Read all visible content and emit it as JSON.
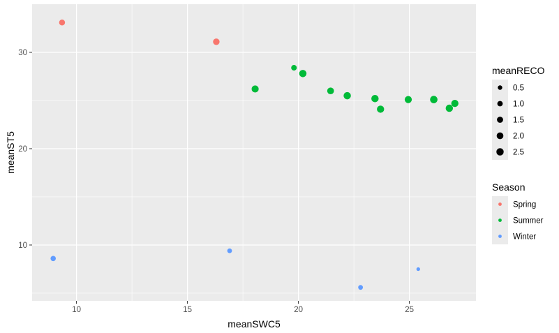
{
  "chart_data": {
    "type": "scatter",
    "xlabel": "meanSWC5",
    "ylabel": "meanST5",
    "xlim": [
      8,
      28
    ],
    "ylim": [
      4.2,
      35
    ],
    "x_ticks": [
      10,
      15,
      20,
      25
    ],
    "y_ticks": [
      10,
      20,
      30
    ],
    "x_tick_labels": [
      "10",
      "15",
      "20",
      "25"
    ],
    "y_tick_labels": [
      "10",
      "20",
      "30"
    ],
    "grid": true,
    "panel_background": "#ebebeb",
    "grid_color": "#ffffff",
    "size_legend": {
      "title": "meanRECO",
      "values": [
        0.5,
        1.0,
        1.5,
        2.0,
        2.5
      ],
      "labels": [
        "0.5",
        "1.0",
        "1.5",
        "2.0",
        "2.5"
      ],
      "color": "#000000",
      "position": "right"
    },
    "color_legend": {
      "title": "Season",
      "position": "right",
      "entries": [
        {
          "label": "Spring",
          "color": "#f8766d"
        },
        {
          "label": "Summer",
          "color": "#00ba38"
        },
        {
          "label": "Winter",
          "color": "#619cff"
        }
      ]
    },
    "series": [
      {
        "name": "Spring",
        "color": "#f8766d",
        "points": [
          {
            "x": 9.35,
            "y": 33.1,
            "size": 1.3
          },
          {
            "x": 16.3,
            "y": 31.1,
            "size": 1.8
          }
        ]
      },
      {
        "name": "Summer",
        "color": "#00ba38",
        "points": [
          {
            "x": 18.05,
            "y": 26.2,
            "size": 2.3
          },
          {
            "x": 19.8,
            "y": 28.4,
            "size": 1.1
          },
          {
            "x": 20.2,
            "y": 27.8,
            "size": 2.5
          },
          {
            "x": 21.45,
            "y": 26.0,
            "size": 2.0
          },
          {
            "x": 22.2,
            "y": 25.5,
            "size": 2.5
          },
          {
            "x": 23.45,
            "y": 25.2,
            "size": 2.5
          },
          {
            "x": 23.7,
            "y": 24.1,
            "size": 2.4
          },
          {
            "x": 24.95,
            "y": 25.1,
            "size": 2.3
          },
          {
            "x": 26.1,
            "y": 25.1,
            "size": 2.6
          },
          {
            "x": 26.8,
            "y": 24.2,
            "size": 2.5
          },
          {
            "x": 27.05,
            "y": 24.7,
            "size": 2.4
          }
        ]
      },
      {
        "name": "Winter",
        "color": "#619cff",
        "points": [
          {
            "x": 8.95,
            "y": 8.6,
            "size": 0.9
          },
          {
            "x": 16.9,
            "y": 9.4,
            "size": 0.6
          },
          {
            "x": 22.8,
            "y": 5.6,
            "size": 0.6
          },
          {
            "x": 25.4,
            "y": 7.5,
            "size": 0.2
          }
        ]
      }
    ]
  }
}
